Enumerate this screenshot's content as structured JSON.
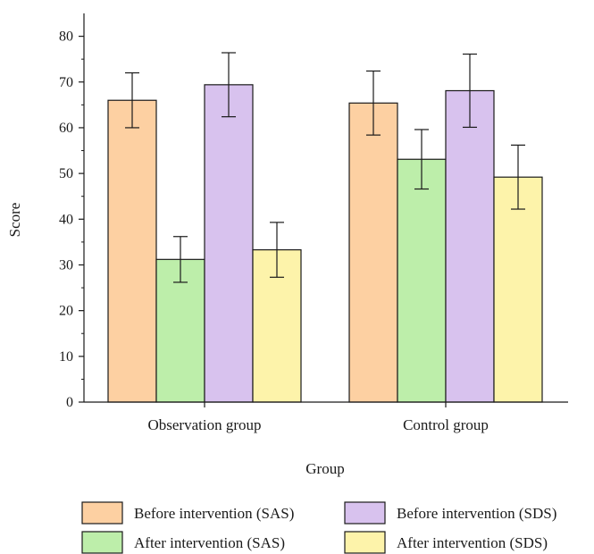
{
  "chart_data": {
    "type": "bar",
    "xlabel": "Group",
    "ylabel": "Score",
    "ylim": [
      0,
      85
    ],
    "yticks": [
      0,
      10,
      20,
      30,
      40,
      50,
      60,
      70,
      80
    ],
    "categories": [
      "Observation group",
      "Control group"
    ],
    "series": [
      {
        "name": "Before intervention (SAS)",
        "color": "#fdd0a2",
        "values": [
          66.0,
          65.4
        ],
        "errors": [
          6.0,
          7.0
        ]
      },
      {
        "name": "After intervention (SAS)",
        "color": "#bdeeaa",
        "values": [
          31.2,
          53.1
        ],
        "errors": [
          5.0,
          6.5
        ]
      },
      {
        "name": "Before intervention (SDS)",
        "color": "#d8c2ee",
        "values": [
          69.4,
          68.1
        ],
        "errors": [
          7.0,
          8.0
        ]
      },
      {
        "name": "After intervention (SDS)",
        "color": "#fdf3aa",
        "values": [
          33.3,
          49.2
        ],
        "errors": [
          6.0,
          7.0
        ]
      }
    ],
    "legend": "bottom",
    "grid": false
  }
}
